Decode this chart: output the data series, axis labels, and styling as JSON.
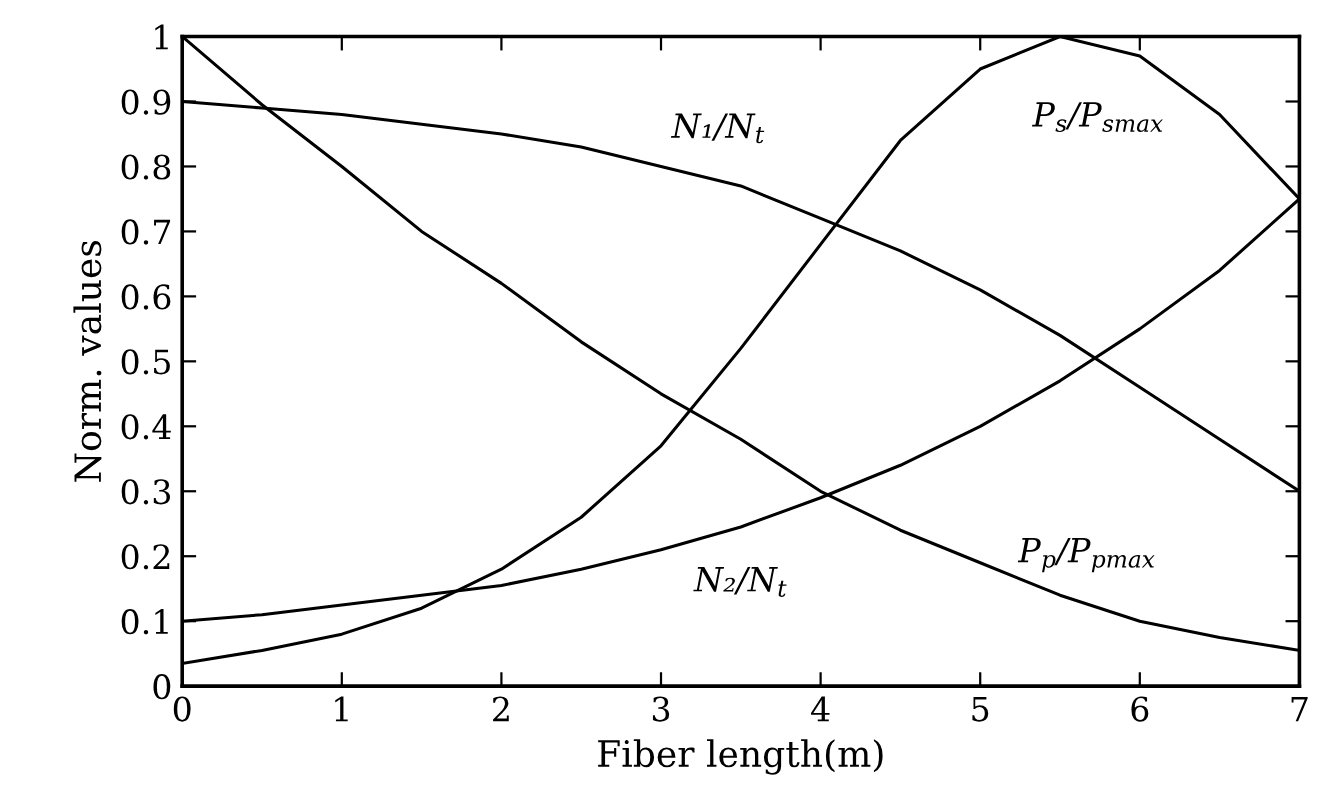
{
  "chart_data": {
    "type": "line",
    "xlabel": "Fiber length(m)",
    "ylabel": "Norm. values",
    "x": [
      0,
      0.5,
      1,
      1.5,
      2,
      2.5,
      3,
      3.5,
      4,
      4.5,
      5,
      5.5,
      6,
      6.5,
      7
    ],
    "series": [
      {
        "name": "N₁/N$_{t}$",
        "color": "#000000",
        "values": [
          0.9,
          0.89,
          0.88,
          0.865,
          0.85,
          0.83,
          0.8,
          0.77,
          0.72,
          0.67,
          0.61,
          0.54,
          0.46,
          0.38,
          0.3
        ]
      },
      {
        "name": "P$_{p}$/P$_{pmax}$",
        "color": "#000000",
        "values": [
          1.0,
          0.895,
          0.8,
          0.7,
          0.62,
          0.53,
          0.45,
          0.38,
          0.3,
          0.24,
          0.19,
          0.14,
          0.1,
          0.075,
          0.055
        ]
      },
      {
        "name": "N₂/N$_{t}$",
        "color": "#000000",
        "values": [
          0.1,
          0.11,
          0.125,
          0.14,
          0.155,
          0.18,
          0.21,
          0.245,
          0.29,
          0.34,
          0.4,
          0.47,
          0.55,
          0.64,
          0.75
        ]
      },
      {
        "name": "P$_{s}$/P$_{smax}$",
        "color": "#000000",
        "values": [
          0.035,
          0.055,
          0.08,
          0.12,
          0.18,
          0.26,
          0.37,
          0.52,
          0.68,
          0.84,
          0.95,
          1.0,
          0.97,
          0.88,
          0.75
        ]
      }
    ],
    "xlim": [
      0,
      7
    ],
    "ylim": [
      0,
      1
    ],
    "xticks": [
      0,
      1,
      2,
      3,
      4,
      5,
      6,
      7
    ],
    "yticks": [
      0,
      0.1,
      0.2,
      0.3,
      0.4,
      0.5,
      0.6,
      0.7,
      0.8,
      0.9,
      1
    ],
    "grid": false,
    "legend": false,
    "marker": "none",
    "line_style": "solid"
  }
}
